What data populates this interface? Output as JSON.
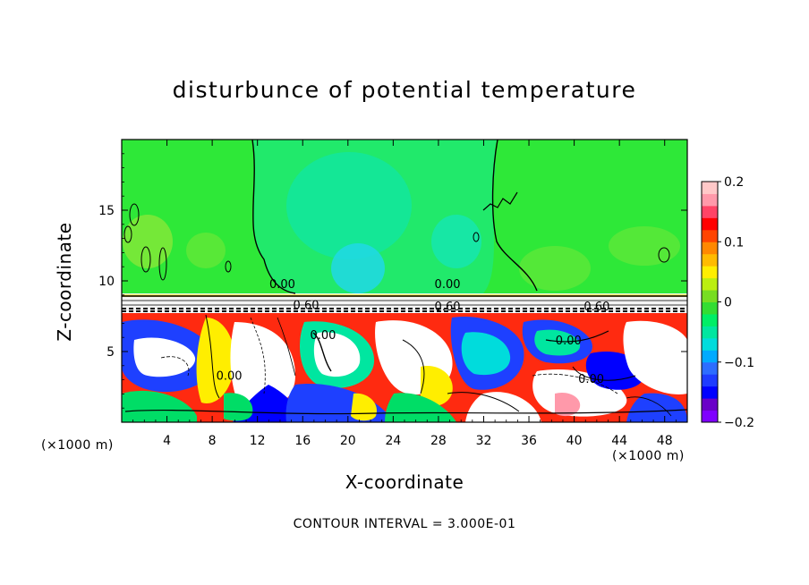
{
  "chart_data": {
    "type": "heatmap",
    "title": "disturbunce of potential temperature",
    "xlabel": "X-coordinate",
    "ylabel": "Z-coordinate",
    "x_unit": "(×1000 m)",
    "x_unit_right": "(×1000 m)",
    "xlim": [
      0,
      50
    ],
    "ylim": [
      0,
      20
    ],
    "x_ticks": [
      4,
      8,
      12,
      16,
      20,
      24,
      28,
      32,
      36,
      40,
      44,
      48
    ],
    "x_tick_labels": [
      "4",
      "8",
      "12",
      "16",
      "20",
      "24",
      "28",
      "32",
      "36",
      "40",
      "44",
      "48"
    ],
    "y_ticks": [
      5,
      10,
      15
    ],
    "y_tick_labels": [
      "5",
      "10",
      "15"
    ],
    "colorbar": {
      "range": [
        -0.2,
        0.2
      ],
      "tick_values": [
        0.2,
        0.1,
        0,
        -0.1,
        -0.2
      ],
      "tick_labels": [
        "0.2",
        "0.1",
        "0",
        "−0.1",
        "−0.2"
      ],
      "colors": [
        "#7f00ff",
        "#6a00c8",
        "#0000ff",
        "#1e3cff",
        "#2d6dff",
        "#00aaff",
        "#00dcdc",
        "#00e6a0",
        "#00ee66",
        "#33dd33",
        "#77dd22",
        "#bbee11",
        "#ffee00",
        "#ffbb00",
        "#ff8800",
        "#ff4400",
        "#ff0000",
        "#ff4466",
        "#ff99aa",
        "#ffc8c8"
      ]
    },
    "contour_labels": [
      {
        "text": "0.00",
        "x": 14.2,
        "y": 9.5
      },
      {
        "text": "0.00",
        "x": 28.8,
        "y": 9.5
      },
      {
        "text": "0.60",
        "x": 16.3,
        "y": 8.0
      },
      {
        "text": "0.60",
        "x": 28.8,
        "y": 7.9
      },
      {
        "text": "0.60",
        "x": 42.0,
        "y": 7.9
      },
      {
        "text": "0.00",
        "x": 17.8,
        "y": 5.9
      },
      {
        "text": "0.00",
        "x": 39.5,
        "y": 5.5
      },
      {
        "text": "0.00",
        "x": 41.5,
        "y": 2.8
      },
      {
        "text": "0.00",
        "x": 9.5,
        "y": 3.0
      }
    ],
    "contour_interval_text": "CONTOUR INTERVAL = 3.000E-01"
  }
}
